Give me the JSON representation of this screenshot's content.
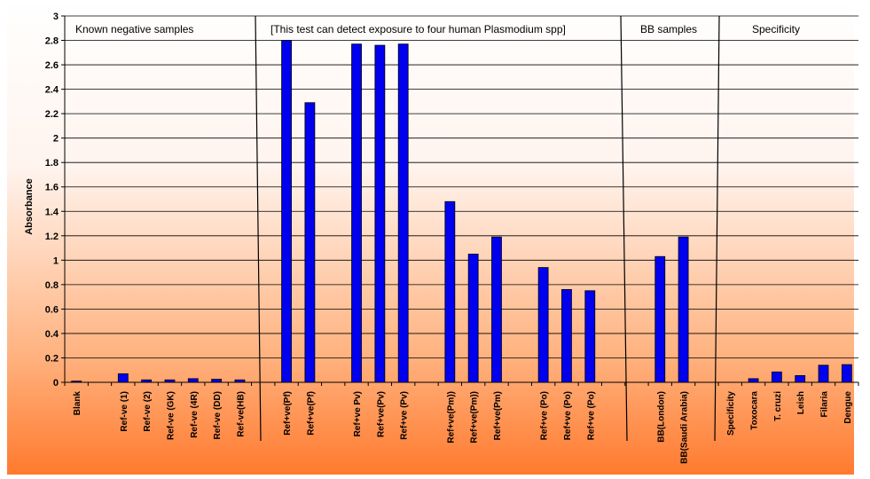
{
  "chart_data": {
    "type": "bar",
    "ylabel": "Absorbance",
    "xlabel": "",
    "ylim": [
      0,
      3
    ],
    "yticks": [
      0,
      0.2,
      0.4,
      0.6,
      0.8,
      1,
      1.2,
      1.4,
      1.6,
      1.8,
      2,
      2.2,
      2.4,
      2.6,
      2.8,
      3
    ],
    "grid": true,
    "bar_color": "#0000ee",
    "background_gradient": [
      "#ffffff",
      "#ff7a2e"
    ],
    "categories": [
      "Blank",
      "",
      "Ref-ve (1)",
      "Ref-ve (2)",
      "Ref-ve (GK)",
      "Ref-ve (4R)",
      "Ref-ve (DD)",
      "Ref-ve(HB)",
      "",
      "Ref+ve(Pf)",
      "Ref+ve(Pf)",
      "",
      "Ref+ve Pv)",
      "Ref+ve(Pv)",
      "Ref+ve (Pv)",
      "",
      "Ref+ve(Pm))",
      "Ref+ve(Pm))",
      "Ref+ve(Pm)",
      "",
      "Ref+ve (Po)",
      "Ref+ve (Po)",
      "Ref+ve (Po)",
      "",
      "",
      "BB(London)",
      "BB(Saudi Arabia)",
      "",
      "Specificity",
      "Toxocara",
      "T. cruzi",
      "Leish",
      "Filaria",
      "Dengue"
    ],
    "values": [
      0.01,
      null,
      0.07,
      0.02,
      0.02,
      0.03,
      0.025,
      0.02,
      null,
      2.8,
      2.29,
      null,
      2.77,
      2.76,
      2.77,
      null,
      1.48,
      1.05,
      1.19,
      null,
      0.94,
      0.76,
      0.75,
      null,
      null,
      1.03,
      1.19,
      null,
      null,
      0.03,
      0.085,
      0.055,
      0.14,
      0.145
    ],
    "section_labels": [
      "Known negative samples",
      "[This  test can detect exposure  to four  human   Plasmodium  spp]",
      "BB samples",
      "Specificity"
    ]
  }
}
